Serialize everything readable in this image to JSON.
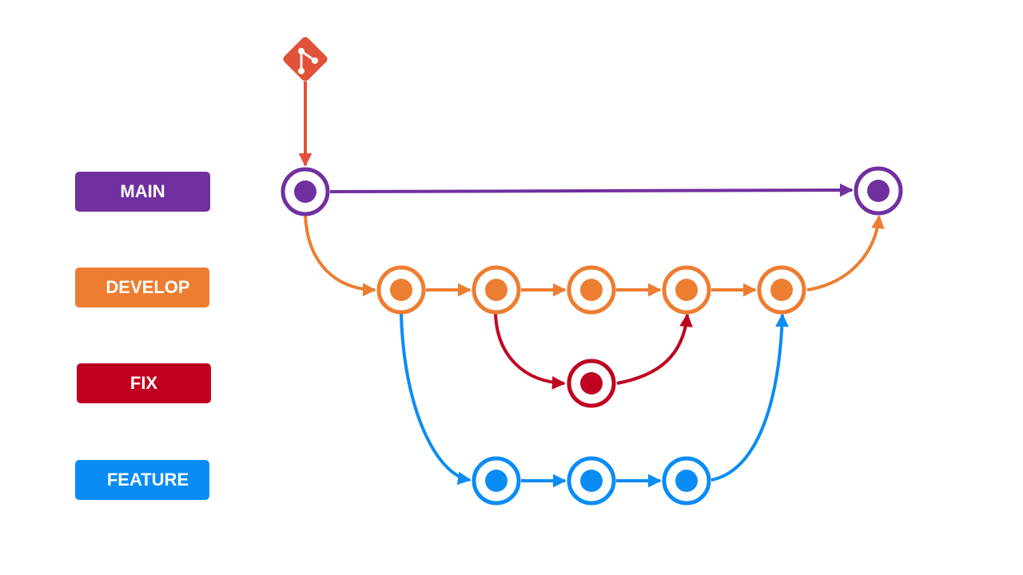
{
  "colors": {
    "git": "#e2513a",
    "main": "#7030a0",
    "develop": "#ed7d31",
    "fix": "#c00020",
    "feature": "#0a8cf5"
  },
  "logo": {
    "icon": "git-logo-icon"
  },
  "branches": [
    {
      "id": "main",
      "label": "MAIN"
    },
    {
      "id": "develop",
      "label": "DEVELOP"
    },
    {
      "id": "fix",
      "label": "FIX"
    },
    {
      "id": "feature",
      "label": "FEATURE"
    }
  ]
}
